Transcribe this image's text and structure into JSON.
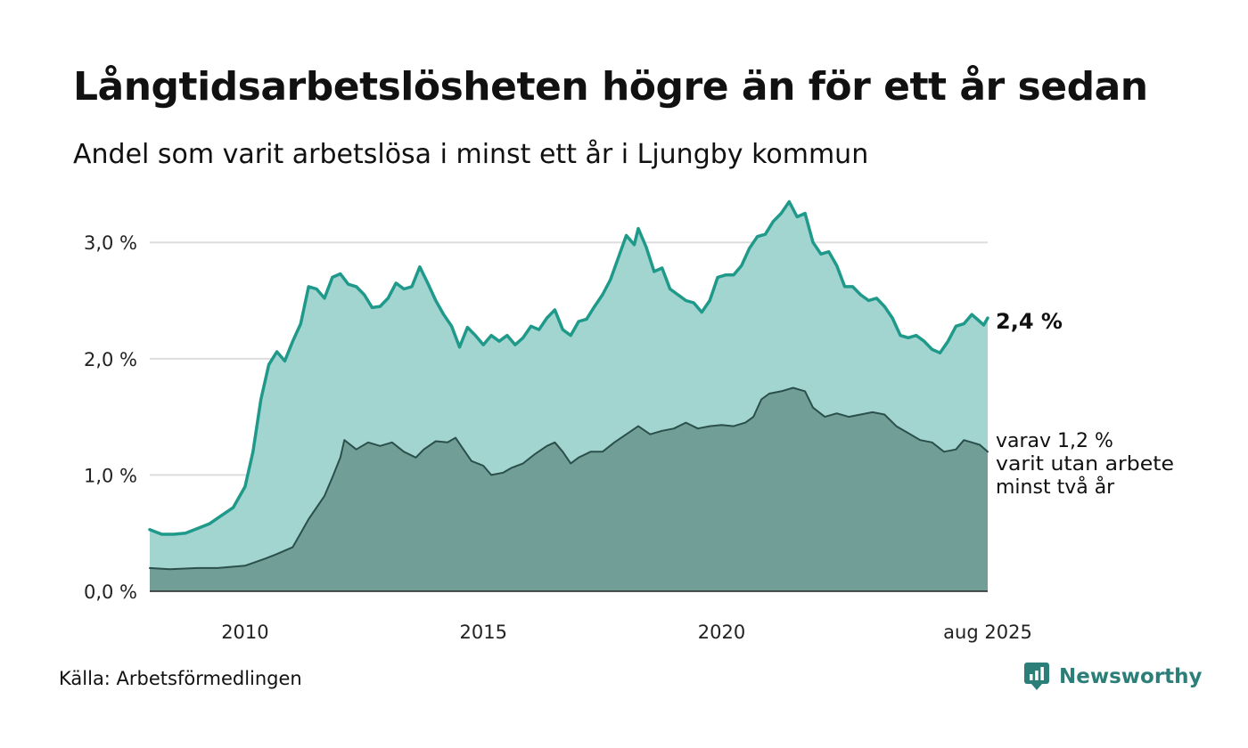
{
  "title": "Långtidsarbetslösheten högre än för ett år sedan",
  "subtitle": "Andel som varit arbetslösa i minst ett år i Ljungby kommun",
  "source": "Källa: Arbetsförmedlingen",
  "brand": "Newsworthy",
  "annotations": {
    "total_end_label": "2,4 %",
    "sub_end_label_lines": [
      "varav 1,2 %",
      "varit utan arbete",
      "minst två år"
    ]
  },
  "colors": {
    "total_line": "#1f9a8a",
    "total_fill": "#a3d5d0",
    "sub_line": "#2b4f4b",
    "sub_fill": "#719f98",
    "grid": "#dddddd",
    "brand": "#2c7f79"
  },
  "chart_data": {
    "type": "area",
    "y_unit": "%",
    "ylim": [
      0,
      3.4
    ],
    "y_ticks": [
      0,
      1,
      2,
      3
    ],
    "y_tick_labels": [
      "0,0 %",
      "1,0 %",
      "2,0 %",
      "3,0 %"
    ],
    "x_range": [
      "2008-01",
      "2025-08"
    ],
    "x_ticks": [
      "2010-01",
      "2015-01",
      "2020-01",
      "2025-08"
    ],
    "x_tick_labels": [
      "2010",
      "2015",
      "2020",
      "aug 2025"
    ],
    "grid": "horizontal",
    "series": [
      {
        "key": "total",
        "points": [
          [
            "2008-01",
            0.53
          ],
          [
            "2008-04",
            0.49
          ],
          [
            "2008-07",
            0.49
          ],
          [
            "2008-10",
            0.5
          ],
          [
            "2009-01",
            0.54
          ],
          [
            "2009-04",
            0.58
          ],
          [
            "2009-07",
            0.65
          ],
          [
            "2009-10",
            0.72
          ],
          [
            "2010-01",
            0.9
          ],
          [
            "2010-03",
            1.2
          ],
          [
            "2010-05",
            1.65
          ],
          [
            "2010-07",
            1.95
          ],
          [
            "2010-09",
            2.06
          ],
          [
            "2010-11",
            1.98
          ],
          [
            "2011-01",
            2.15
          ],
          [
            "2011-03",
            2.3
          ],
          [
            "2011-05",
            2.62
          ],
          [
            "2011-07",
            2.6
          ],
          [
            "2011-09",
            2.52
          ],
          [
            "2011-11",
            2.7
          ],
          [
            "2012-01",
            2.73
          ],
          [
            "2012-03",
            2.64
          ],
          [
            "2012-05",
            2.62
          ],
          [
            "2012-07",
            2.55
          ],
          [
            "2012-09",
            2.44
          ],
          [
            "2012-11",
            2.45
          ],
          [
            "2013-01",
            2.52
          ],
          [
            "2013-03",
            2.65
          ],
          [
            "2013-05",
            2.6
          ],
          [
            "2013-07",
            2.62
          ],
          [
            "2013-09",
            2.79
          ],
          [
            "2013-11",
            2.65
          ],
          [
            "2014-01",
            2.5
          ],
          [
            "2014-03",
            2.38
          ],
          [
            "2014-05",
            2.28
          ],
          [
            "2014-07",
            2.1
          ],
          [
            "2014-09",
            2.27
          ],
          [
            "2014-11",
            2.2
          ],
          [
            "2015-01",
            2.12
          ],
          [
            "2015-03",
            2.2
          ],
          [
            "2015-05",
            2.15
          ],
          [
            "2015-07",
            2.2
          ],
          [
            "2015-09",
            2.12
          ],
          [
            "2015-11",
            2.18
          ],
          [
            "2016-01",
            2.28
          ],
          [
            "2016-03",
            2.25
          ],
          [
            "2016-05",
            2.35
          ],
          [
            "2016-07",
            2.42
          ],
          [
            "2016-09",
            2.25
          ],
          [
            "2016-11",
            2.2
          ],
          [
            "2017-01",
            2.32
          ],
          [
            "2017-03",
            2.34
          ],
          [
            "2017-05",
            2.45
          ],
          [
            "2017-07",
            2.55
          ],
          [
            "2017-09",
            2.68
          ],
          [
            "2017-11",
            2.87
          ],
          [
            "2018-01",
            3.06
          ],
          [
            "2018-03",
            2.98
          ],
          [
            "2018-04",
            3.12
          ],
          [
            "2018-06",
            2.96
          ],
          [
            "2018-08",
            2.75
          ],
          [
            "2018-10",
            2.78
          ],
          [
            "2018-12",
            2.6
          ],
          [
            "2019-02",
            2.55
          ],
          [
            "2019-04",
            2.5
          ],
          [
            "2019-06",
            2.48
          ],
          [
            "2019-08",
            2.4
          ],
          [
            "2019-10",
            2.5
          ],
          [
            "2019-12",
            2.7
          ],
          [
            "2020-02",
            2.72
          ],
          [
            "2020-04",
            2.72
          ],
          [
            "2020-06",
            2.8
          ],
          [
            "2020-08",
            2.95
          ],
          [
            "2020-10",
            3.05
          ],
          [
            "2020-12",
            3.07
          ],
          [
            "2021-02",
            3.18
          ],
          [
            "2021-04",
            3.25
          ],
          [
            "2021-06",
            3.35
          ],
          [
            "2021-08",
            3.22
          ],
          [
            "2021-10",
            3.25
          ],
          [
            "2021-12",
            3.0
          ],
          [
            "2022-02",
            2.9
          ],
          [
            "2022-04",
            2.92
          ],
          [
            "2022-06",
            2.8
          ],
          [
            "2022-08",
            2.62
          ],
          [
            "2022-10",
            2.62
          ],
          [
            "2022-12",
            2.55
          ],
          [
            "2023-02",
            2.5
          ],
          [
            "2023-04",
            2.52
          ],
          [
            "2023-06",
            2.45
          ],
          [
            "2023-08",
            2.35
          ],
          [
            "2023-10",
            2.2
          ],
          [
            "2023-12",
            2.18
          ],
          [
            "2024-02",
            2.2
          ],
          [
            "2024-04",
            2.15
          ],
          [
            "2024-06",
            2.08
          ],
          [
            "2024-08",
            2.05
          ],
          [
            "2024-10",
            2.15
          ],
          [
            "2024-12",
            2.28
          ],
          [
            "2025-02",
            2.3
          ],
          [
            "2025-04",
            2.38
          ],
          [
            "2025-06",
            2.32
          ],
          [
            "2025-07",
            2.29
          ],
          [
            "2025-08",
            2.35
          ]
        ]
      },
      {
        "key": "two_years_or_more",
        "points": [
          [
            "2008-01",
            0.2
          ],
          [
            "2008-06",
            0.19
          ],
          [
            "2009-01",
            0.2
          ],
          [
            "2009-06",
            0.2
          ],
          [
            "2010-01",
            0.22
          ],
          [
            "2010-06",
            0.28
          ],
          [
            "2010-09",
            0.32
          ],
          [
            "2011-01",
            0.38
          ],
          [
            "2011-03",
            0.5
          ],
          [
            "2011-05",
            0.62
          ],
          [
            "2011-07",
            0.72
          ],
          [
            "2011-09",
            0.82
          ],
          [
            "2011-11",
            0.98
          ],
          [
            "2012-01",
            1.15
          ],
          [
            "2012-02",
            1.3
          ],
          [
            "2012-05",
            1.22
          ],
          [
            "2012-08",
            1.28
          ],
          [
            "2012-11",
            1.25
          ],
          [
            "2013-02",
            1.28
          ],
          [
            "2013-05",
            1.2
          ],
          [
            "2013-08",
            1.15
          ],
          [
            "2013-10",
            1.22
          ],
          [
            "2014-01",
            1.29
          ],
          [
            "2014-04",
            1.28
          ],
          [
            "2014-06",
            1.32
          ],
          [
            "2014-08",
            1.22
          ],
          [
            "2014-10",
            1.12
          ],
          [
            "2015-01",
            1.08
          ],
          [
            "2015-03",
            1.0
          ],
          [
            "2015-06",
            1.02
          ],
          [
            "2015-08",
            1.06
          ],
          [
            "2015-11",
            1.1
          ],
          [
            "2016-02",
            1.18
          ],
          [
            "2016-05",
            1.25
          ],
          [
            "2016-07",
            1.28
          ],
          [
            "2016-09",
            1.2
          ],
          [
            "2016-11",
            1.1
          ],
          [
            "2017-01",
            1.15
          ],
          [
            "2017-04",
            1.2
          ],
          [
            "2017-07",
            1.2
          ],
          [
            "2017-10",
            1.28
          ],
          [
            "2018-01",
            1.35
          ],
          [
            "2018-04",
            1.42
          ],
          [
            "2018-07",
            1.35
          ],
          [
            "2018-10",
            1.38
          ],
          [
            "2019-01",
            1.4
          ],
          [
            "2019-04",
            1.45
          ],
          [
            "2019-07",
            1.4
          ],
          [
            "2019-10",
            1.42
          ],
          [
            "2020-01",
            1.43
          ],
          [
            "2020-04",
            1.42
          ],
          [
            "2020-07",
            1.45
          ],
          [
            "2020-09",
            1.5
          ],
          [
            "2020-11",
            1.65
          ],
          [
            "2021-01",
            1.7
          ],
          [
            "2021-04",
            1.72
          ],
          [
            "2021-07",
            1.75
          ],
          [
            "2021-10",
            1.72
          ],
          [
            "2021-12",
            1.58
          ],
          [
            "2022-03",
            1.5
          ],
          [
            "2022-06",
            1.53
          ],
          [
            "2022-09",
            1.5
          ],
          [
            "2022-12",
            1.52
          ],
          [
            "2023-03",
            1.54
          ],
          [
            "2023-06",
            1.52
          ],
          [
            "2023-09",
            1.42
          ],
          [
            "2023-12",
            1.36
          ],
          [
            "2024-03",
            1.3
          ],
          [
            "2024-06",
            1.28
          ],
          [
            "2024-09",
            1.2
          ],
          [
            "2024-12",
            1.22
          ],
          [
            "2025-02",
            1.3
          ],
          [
            "2025-04",
            1.28
          ],
          [
            "2025-06",
            1.26
          ],
          [
            "2025-08",
            1.2
          ]
        ]
      }
    ]
  }
}
